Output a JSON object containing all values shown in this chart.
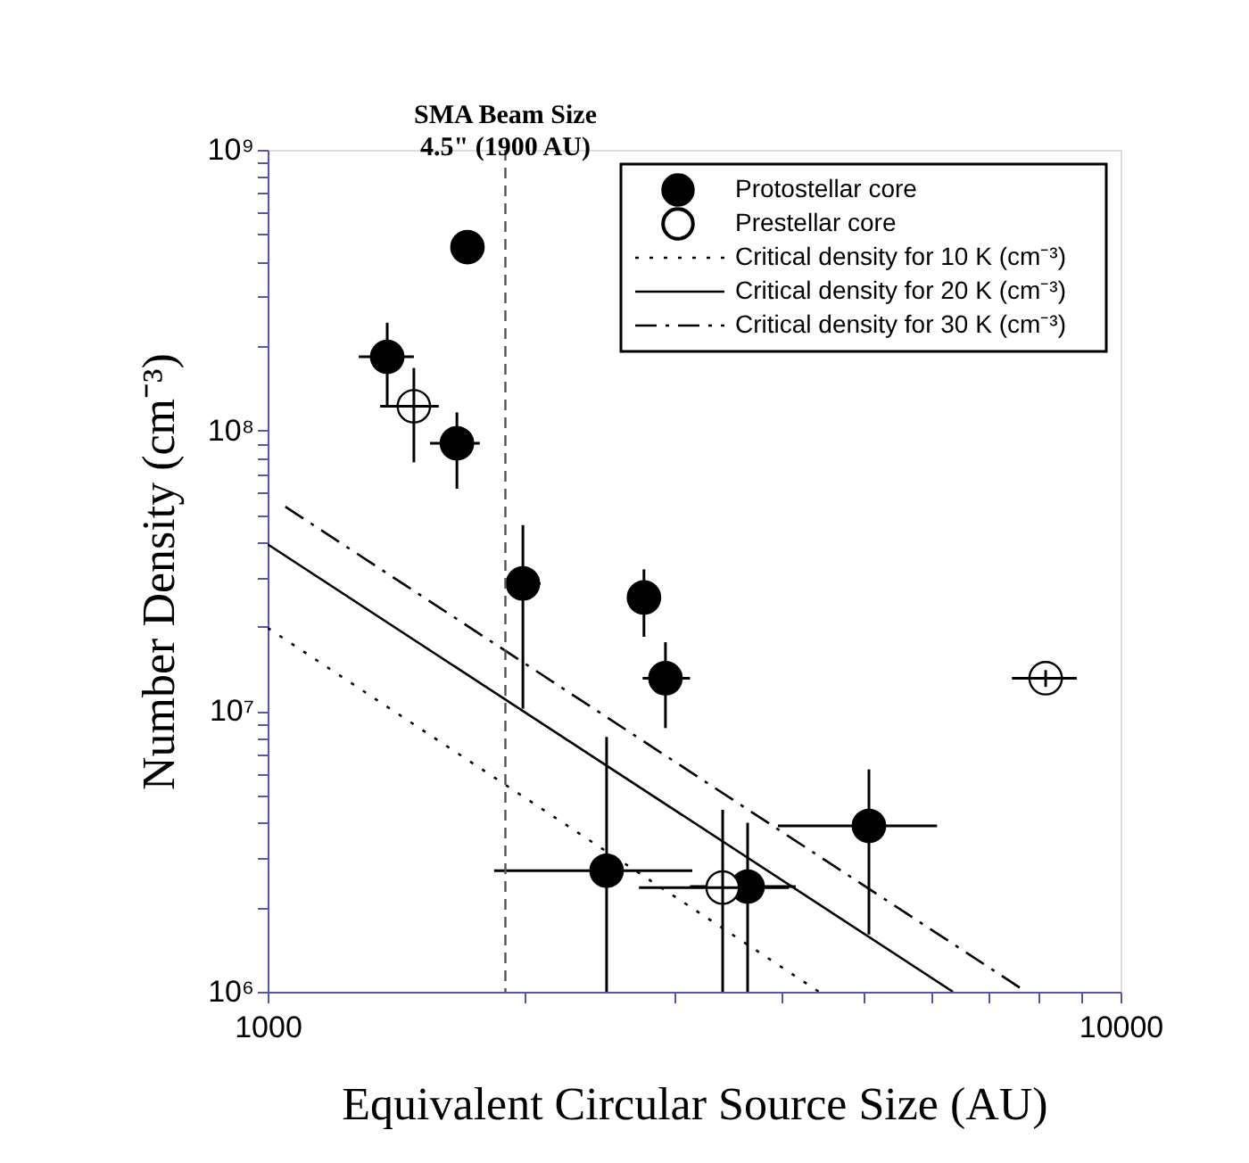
{
  "chart_data": {
    "type": "scatter",
    "xlabel": "Equivalent Circular Source Size (AU)",
    "ylabel": "Number Density (cm⁻³)",
    "xlim": [
      1000,
      10000
    ],
    "ylim": [
      1000000,
      1000000000
    ],
    "xticks": [
      1000,
      {
        "value": 2000,
        "label": null
      },
      {
        "value": 3000,
        "label": null
      },
      {
        "value": 4000,
        "label": null
      },
      {
        "value": 5000,
        "label": null
      },
      {
        "value": 6000,
        "label": null
      },
      {
        "value": 7000,
        "label": null
      },
      {
        "value": 8000,
        "label": null
      },
      {
        "value": 9000,
        "label": null
      },
      10000
    ],
    "yticks": [
      {
        "value": 1000000,
        "label": "10⁶"
      },
      {
        "value": 2000000,
        "label": null
      },
      {
        "value": 3000000,
        "label": null
      },
      {
        "value": 4000000,
        "label": null
      },
      {
        "value": 5000000,
        "label": null
      },
      {
        "value": 6000000,
        "label": null
      },
      {
        "value": 7000000,
        "label": null
      },
      {
        "value": 8000000,
        "label": null
      },
      {
        "value": 9000000,
        "label": null
      },
      {
        "value": 10000000,
        "label": "10⁷"
      },
      {
        "value": 20000000,
        "label": null
      },
      {
        "value": 30000000,
        "label": null
      },
      {
        "value": 40000000,
        "label": null
      },
      {
        "value": 50000000,
        "label": null
      },
      {
        "value": 60000000,
        "label": null
      },
      {
        "value": 70000000,
        "label": null
      },
      {
        "value": 80000000,
        "label": null
      },
      {
        "value": 90000000,
        "label": null
      },
      {
        "value": 100000000,
        "label": "10⁸"
      },
      {
        "value": 200000000,
        "label": null
      },
      {
        "value": 300000000,
        "label": null
      },
      {
        "value": 400000000,
        "label": null
      },
      {
        "value": 500000000,
        "label": null
      },
      {
        "value": 600000000,
        "label": null
      },
      {
        "value": 700000000,
        "label": null
      },
      {
        "value": 800000000,
        "label": null
      },
      {
        "value": 900000000,
        "label": null
      },
      {
        "value": 1000000000,
        "label": "10⁹"
      }
    ],
    "log": "xy",
    "grid": false,
    "legend": "top right",
    "series": [
      {
        "name": "Protostellar core",
        "marker": "circle",
        "color": "#000000",
        "x": [
          1715,
          1381,
          1667,
          1992,
          2762,
          2927,
          5070,
          2497,
          3654
        ],
        "values": [
          450000000,
          183000000,
          90000000,
          28500000,
          25400000,
          13100000,
          3900000,
          2700000,
          2370000
        ],
        "errors": [
          [
            400000000,
            510000000
          ],
          [
            123000000,
            242000000
          ],
          [
            62000000,
            116000000
          ],
          [
            10200000,
            46000000
          ],
          [
            18400000,
            32000000
          ],
          [
            8700000,
            17600000
          ],
          [
            1600000,
            6200000
          ],
          [
            1000000,
            8100000
          ],
          [
            1000000,
            4000000
          ]
        ],
        "xerrors": [
          null,
          [
            1279,
            1484
          ],
          [
            1550,
            1773
          ],
          [
            1897,
            2089
          ],
          null,
          [
            2752,
            3128
          ],
          [
            3966,
            6094
          ],
          [
            1843,
            3147
          ],
          [
            3128,
            4160
          ]
        ]
      },
      {
        "name": "Prestellar core",
        "marker": "circle",
        "color": "#ffffff",
        "x": [
          1484,
          3416,
          8170
        ],
        "values": [
          122000000,
          2350000,
          13100000
        ],
        "errors": [
          [
            77000000,
            167000000
          ],
          [
            1000000,
            4450000
          ],
          [
            12200000,
            14000000
          ]
        ],
        "xerrors": [
          [
            1355,
            1587
          ],
          [
            2725,
            4085
          ],
          [
            7459,
            8886
          ]
        ]
      },
      {
        "name": "Critical density for 10 K (cm⁻³)",
        "type": "line",
        "line_style": "dotted",
        "color": "#000000",
        "x": [
          1000,
          4430
        ],
        "values": [
          19800000,
          1000000
        ]
      },
      {
        "name": "Critical density for 20 K (cm⁻³)",
        "type": "line",
        "line_style": "solid",
        "color": "#000000",
        "x": [
          1000,
          6360
        ],
        "values": [
          39300000,
          1000000
        ]
      },
      {
        "name": "Critical density for 30 K (cm⁻³)",
        "type": "line",
        "line_style": "dashed",
        "color": "#000000",
        "x": [
          1049,
          7750
        ],
        "values": [
          53500000,
          1000000
        ]
      }
    ],
    "ref_lines": [
      {
        "axis": "x",
        "value": 1900,
        "label": "SMA Beam Size\n4.5\" (1900 AU)",
        "line_style": "dashed",
        "color": "#555555"
      }
    ]
  }
}
